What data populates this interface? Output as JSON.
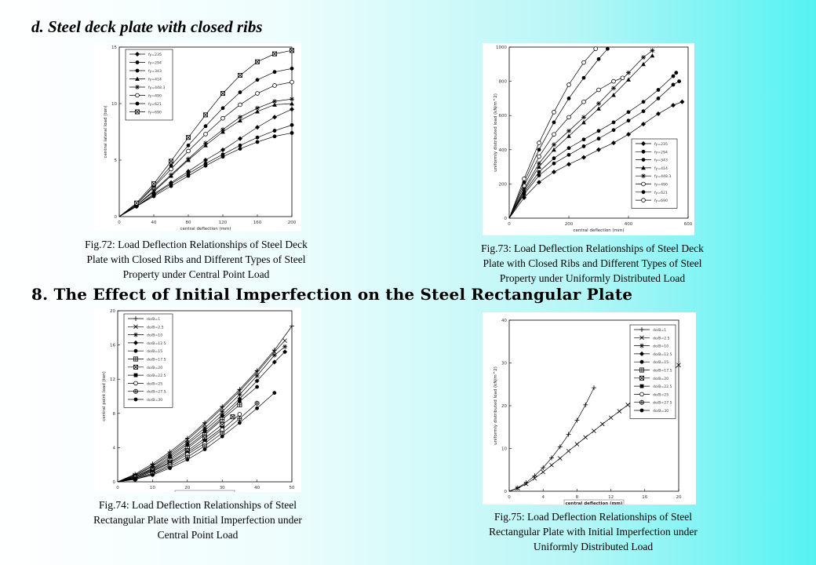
{
  "section_d_heading": "d. Steel deck plate with closed ribs",
  "section_8_heading": "8. The Effect of Initial Imperfection on the Steel Rectangular Plate",
  "captions": {
    "fig72": [
      "Fig.72: Load Deflection Relationships of Steel Deck",
      "Plate with Closed Ribs and Different Types of Steel",
      "Property under Central Point Load"
    ],
    "fig73": [
      "Fig.73: Load Deflection Relationships of Steel Deck",
      "Plate with Closed Ribs and Different Types of Steel",
      "Property under Uniformly Distributed Load"
    ],
    "fig74": [
      "Fig.74: Load Deflection Relationships of Steel",
      "Rectangular Plate with Initial Imperfection under",
      "Central Point Load"
    ],
    "fig75": [
      "Fig.75: Load Deflection Relationships of Steel",
      "Rectangular Plate with Initial Imperfection under",
      "Uniformly Distributed Load"
    ]
  },
  "chart_data": [
    {
      "id": "fig72",
      "type": "line",
      "xlabel": "central deflection (mm)",
      "ylabel": "central lateral load (ton)",
      "xlim": [
        0,
        200
      ],
      "ylim": [
        0,
        15
      ],
      "xticks": [
        "0",
        "40",
        "80",
        "120",
        "160",
        "200"
      ],
      "yticks": [
        "0",
        "5",
        "10",
        "15"
      ],
      "legend_position": "top-left",
      "series": [
        {
          "name": "fy=235",
          "marker": "diamond",
          "x": [
            0,
            20,
            40,
            60,
            80,
            100,
            120,
            140,
            160,
            180,
            200
          ],
          "y": [
            0,
            0.9,
            2,
            3,
            4,
            5,
            5.9,
            6.9,
            7.9,
            8.8,
            9.5
          ]
        },
        {
          "name": "fy=294",
          "marker": "circle",
          "x": [
            0,
            20,
            40,
            60,
            80,
            100,
            120,
            140,
            160,
            180,
            200
          ],
          "y": [
            0,
            0.9,
            1.9,
            2.9,
            3.8,
            4.7,
            5.5,
            6.3,
            7.0,
            7.6,
            8.1
          ]
        },
        {
          "name": "fy=343",
          "marker": "circle",
          "x": [
            0,
            20,
            40,
            60,
            80,
            100,
            120,
            140,
            160,
            180,
            200
          ],
          "y": [
            0,
            0.9,
            1.8,
            2.7,
            3.6,
            4.5,
            5.3,
            6.0,
            6.6,
            7.1,
            7.4
          ]
        },
        {
          "name": "fy=414",
          "marker": "triangle",
          "x": [
            0,
            20,
            40,
            60,
            80,
            100,
            120,
            140,
            160,
            180,
            200
          ],
          "y": [
            0,
            1.0,
            2.2,
            3.6,
            5.0,
            6.3,
            7.5,
            8.5,
            9.3,
            9.9,
            10.0
          ]
        },
        {
          "name": "fy=448.3",
          "marker": "star",
          "x": [
            0,
            20,
            40,
            60,
            80,
            100,
            120,
            140,
            160,
            180,
            200
          ],
          "y": [
            0,
            1.0,
            2.3,
            3.7,
            5.1,
            6.5,
            7.7,
            8.8,
            9.6,
            10.2,
            10.4
          ]
        },
        {
          "name": "fy=490",
          "marker": "open-circle",
          "x": [
            0,
            20,
            40,
            60,
            80,
            100,
            120,
            140,
            160,
            180,
            200
          ],
          "y": [
            0,
            1.1,
            2.6,
            4.2,
            5.8,
            7.3,
            8.7,
            9.9,
            10.9,
            11.6,
            11.9
          ]
        },
        {
          "name": "fy=621",
          "marker": "filled-circle",
          "x": [
            0,
            20,
            40,
            60,
            80,
            100,
            120,
            140,
            160,
            180,
            200
          ],
          "y": [
            0,
            1.1,
            2.7,
            4.5,
            6.3,
            8.0,
            9.6,
            11.0,
            12.1,
            12.8,
            13.1
          ]
        },
        {
          "name": "fy=690",
          "marker": "boxed-cross",
          "x": [
            0,
            20,
            40,
            60,
            80,
            100,
            120,
            140,
            160,
            180,
            200
          ],
          "y": [
            0,
            1.2,
            2.9,
            4.9,
            7.0,
            9.0,
            10.9,
            12.5,
            13.7,
            14.4,
            14.7
          ]
        }
      ]
    },
    {
      "id": "fig73",
      "type": "line",
      "xlabel": "central deflection (mm)",
      "ylabel": "uniformly distributed load (kN/m^2)",
      "xlim": [
        0,
        600
      ],
      "ylim": [
        0,
        1000
      ],
      "xticks": [
        "0",
        "200",
        "400",
        "600"
      ],
      "yticks": [
        "0",
        "200",
        "400",
        "600",
        "800",
        "1000"
      ],
      "legend_position": "bottom-right",
      "series": [
        {
          "name": "fy=235",
          "marker": "diamond",
          "x": [
            0,
            50,
            100,
            150,
            200,
            250,
            300,
            350,
            400,
            450,
            500,
            550,
            580
          ],
          "y": [
            0,
            120,
            210,
            270,
            315,
            355,
            400,
            440,
            490,
            550,
            610,
            660,
            680
          ]
        },
        {
          "name": "fy=294",
          "marker": "circle",
          "x": [
            0,
            50,
            100,
            150,
            200,
            250,
            300,
            350,
            400,
            450,
            500,
            550,
            570
          ],
          "y": [
            0,
            140,
            250,
            320,
            370,
            420,
            465,
            515,
            570,
            625,
            700,
            780,
            800
          ]
        },
        {
          "name": "fy=343",
          "marker": "circle",
          "x": [
            0,
            50,
            100,
            150,
            200,
            250,
            300,
            350,
            400,
            450,
            500,
            550,
            560
          ],
          "y": [
            0,
            150,
            270,
            350,
            410,
            460,
            510,
            560,
            620,
            680,
            750,
            830,
            850
          ]
        },
        {
          "name": "fy=414",
          "marker": "triangle",
          "x": [
            0,
            50,
            100,
            150,
            200,
            250,
            300,
            350,
            400,
            450,
            480
          ],
          "y": [
            0,
            160,
            300,
            400,
            480,
            560,
            640,
            720,
            810,
            900,
            950
          ]
        },
        {
          "name": "fy=448.3",
          "marker": "star",
          "x": [
            0,
            50,
            100,
            150,
            200,
            250,
            300,
            350,
            400,
            450,
            480
          ],
          "y": [
            0,
            170,
            320,
            430,
            510,
            590,
            670,
            760,
            850,
            940,
            980
          ]
        },
        {
          "name": "fy=490",
          "marker": "open-circle",
          "x": [
            0,
            50,
            100,
            150,
            200,
            250,
            300,
            350,
            380
          ],
          "y": [
            0,
            190,
            360,
            490,
            590,
            680,
            750,
            800,
            820
          ]
        },
        {
          "name": "fy=621",
          "marker": "filled-circle",
          "x": [
            0,
            50,
            100,
            150,
            200,
            250,
            300,
            330
          ],
          "y": [
            0,
            210,
            400,
            560,
            700,
            820,
            930,
            990
          ]
        },
        {
          "name": "fy=690",
          "marker": "open-circle",
          "x": [
            0,
            50,
            100,
            150,
            200,
            250,
            290
          ],
          "y": [
            0,
            230,
            440,
            620,
            780,
            910,
            990
          ]
        }
      ]
    },
    {
      "id": "fig74",
      "type": "line",
      "xlabel": "central deflection (mm)",
      "ylabel": "central point load (ton)",
      "xlim": [
        0,
        50
      ],
      "ylim": [
        0,
        20
      ],
      "xticks": [
        "0",
        "10",
        "20",
        "30",
        "40",
        "50"
      ],
      "yticks": [
        "0",
        "4",
        "8",
        "12",
        "16",
        "20"
      ],
      "legend_position": "top-left",
      "series": [
        {
          "name": "do/B=1",
          "marker": "plus",
          "x": [
            0,
            5,
            10,
            15,
            20,
            25,
            30,
            35,
            40,
            45,
            50
          ],
          "y": [
            0,
            0.9,
            2.1,
            3.5,
            5.1,
            6.9,
            8.8,
            10.8,
            13.0,
            15.4,
            18.2
          ]
        },
        {
          "name": "do/B=2.5",
          "marker": "x",
          "x": [
            0,
            5,
            10,
            15,
            20,
            25,
            30,
            35,
            40,
            45,
            48
          ],
          "y": [
            0,
            0.8,
            1.9,
            3.3,
            4.9,
            6.7,
            8.6,
            10.6,
            12.8,
            15.2,
            16.5
          ]
        },
        {
          "name": "do/B=10",
          "marker": "star",
          "x": [
            0,
            5,
            10,
            15,
            20,
            25,
            30,
            35,
            40,
            45,
            48
          ],
          "y": [
            0,
            0.7,
            1.8,
            3.1,
            4.6,
            6.3,
            8.2,
            10.2,
            12.4,
            14.8,
            15.8
          ]
        },
        {
          "name": "do/B=12.5",
          "marker": "diamond",
          "x": [
            0,
            5,
            10,
            15,
            20,
            25,
            30,
            35,
            40,
            45,
            48
          ],
          "y": [
            0,
            0.6,
            1.6,
            2.9,
            4.4,
            6.0,
            7.8,
            9.7,
            11.8,
            14.0,
            15.2
          ]
        },
        {
          "name": "do/B=15",
          "marker": "filled-circle",
          "x": [
            0,
            5,
            10,
            15,
            20,
            25,
            30,
            35,
            40
          ],
          "y": [
            0,
            0.6,
            1.5,
            2.7,
            4.1,
            5.7,
            7.5,
            9.4,
            11.1
          ]
        },
        {
          "name": "do/B=17.5",
          "marker": "boxed-plus",
          "x": [
            0,
            5,
            10,
            15,
            20,
            25,
            30,
            35
          ],
          "y": [
            0,
            0.5,
            1.4,
            2.5,
            3.9,
            5.5,
            7.3,
            9.0
          ]
        },
        {
          "name": "do/B=20",
          "marker": "boxed-x",
          "x": [
            0,
            5,
            10,
            15,
            20,
            25,
            30,
            33
          ],
          "y": [
            0,
            0.5,
            1.3,
            2.3,
            3.6,
            5.1,
            6.7,
            7.6
          ]
        },
        {
          "name": "do/B=22.5",
          "marker": "filled-square",
          "x": [
            0,
            5,
            10,
            15,
            20,
            25,
            30
          ],
          "y": [
            0,
            0.4,
            1.2,
            2.2,
            3.4,
            4.8,
            6.3
          ]
        },
        {
          "name": "do/B=25",
          "marker": "open-circle",
          "x": [
            0,
            5,
            10,
            15,
            20,
            25,
            30,
            35
          ],
          "y": [
            0,
            0.4,
            1.0,
            2.0,
            3.2,
            4.5,
            6.1,
            7.9
          ]
        },
        {
          "name": "do/B=27.5",
          "marker": "crossed-circle",
          "x": [
            0,
            5,
            10,
            15,
            20,
            25,
            30,
            35,
            40
          ],
          "y": [
            0,
            0.3,
            0.9,
            1.8,
            2.9,
            4.2,
            5.7,
            7.4,
            9.2
          ]
        },
        {
          "name": "do/B=30",
          "marker": "filled-circle",
          "x": [
            0,
            5,
            10,
            15,
            20,
            25,
            30,
            35,
            40,
            45
          ],
          "y": [
            0,
            0.3,
            0.8,
            1.6,
            2.6,
            3.8,
            5.3,
            6.9,
            8.6,
            10.4
          ]
        }
      ]
    },
    {
      "id": "fig75",
      "type": "line",
      "xlabel": "central deflection (mm)",
      "ylabel": "uniformly distributed load (kN/m^2)",
      "xlim": [
        0,
        20
      ],
      "ylim": [
        0,
        40
      ],
      "xticks": [
        "0",
        "4",
        "8",
        "12",
        "16",
        "20"
      ],
      "yticks": [
        "0",
        "10",
        "20",
        "30",
        "40"
      ],
      "legend_position": "top-right",
      "series": [
        {
          "name": "do/B=1",
          "marker": "plus",
          "x": [
            0,
            1,
            2,
            3,
            4,
            5,
            6,
            7,
            8,
            9,
            10
          ],
          "y": [
            0,
            0.8,
            2.0,
            3.6,
            5.5,
            7.8,
            10.4,
            13.3,
            16.6,
            20.2,
            24.2
          ]
        },
        {
          "name": "do/B=2.5",
          "marker": "x",
          "x": [
            0,
            1,
            2,
            3,
            4,
            5,
            6,
            7,
            8,
            9,
            10,
            11,
            12,
            13,
            14,
            15,
            16,
            17,
            18,
            19,
            20
          ],
          "y": [
            0,
            0.7,
            1.7,
            3.0,
            4.5,
            6.1,
            7.7,
            9.4,
            11.0,
            12.6,
            14.1,
            15.7,
            17.2,
            18.7,
            20.2,
            21.7,
            23.2,
            24.7,
            26.2,
            27.7,
            29.5
          ]
        }
      ],
      "legend_entries": [
        "do/B=1",
        "do/B=2.5",
        "do/B=10",
        "do/B=12.5",
        "do/B=15",
        "do/B=17.5",
        "do/B=20",
        "do/B=22.5",
        "do/B=25",
        "do/B=27.5",
        "do/B=30"
      ]
    }
  ]
}
